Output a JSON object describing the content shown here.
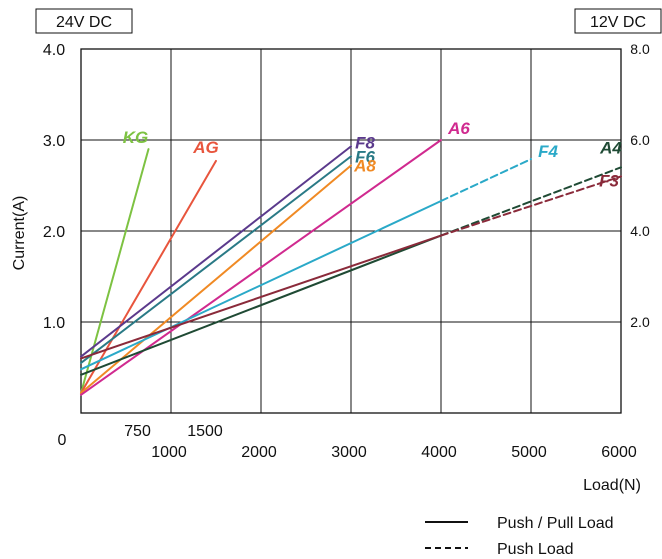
{
  "chart_data": {
    "type": "line",
    "left_axis_box": "24V DC",
    "right_axis_box": "12V DC",
    "ylabel": "Current(A)",
    "xlabel": "Load(N)",
    "xlim": [
      0,
      6000
    ],
    "ylim": [
      0,
      4.0
    ],
    "y2lim": [
      0,
      8.0
    ],
    "x_ticks": [
      "1000",
      "2000",
      "3000",
      "4000",
      "5000",
      "6000"
    ],
    "x_ticks_minor": [
      "750",
      "1500"
    ],
    "origin_label": "0",
    "y_ticks": [
      "1.0",
      "2.0",
      "3.0",
      "4.0"
    ],
    "y2_ticks": [
      "2.0",
      "4.0",
      "6.0",
      "8.0"
    ],
    "grid": true,
    "series": [
      {
        "name": "KG",
        "color": "#7dc242",
        "style": "solid",
        "points": [
          [
            0,
            0.22
          ],
          [
            750,
            2.9
          ]
        ]
      },
      {
        "name": "AG",
        "color": "#e8553d",
        "style": "solid",
        "points": [
          [
            0,
            0.22
          ],
          [
            1500,
            2.77
          ]
        ]
      },
      {
        "name": "F8",
        "color": "#5b3a8c",
        "style": "solid",
        "points": [
          [
            0,
            0.62
          ],
          [
            3000,
            2.93
          ]
        ]
      },
      {
        "name": "F6",
        "color": "#2a7a86",
        "style": "solid",
        "points": [
          [
            0,
            0.55
          ],
          [
            3000,
            2.82
          ]
        ]
      },
      {
        "name": "A8",
        "color": "#f08a24",
        "style": "solid",
        "points": [
          [
            0,
            0.22
          ],
          [
            3000,
            2.72
          ]
        ]
      },
      {
        "name": "A6",
        "color": "#d02a8f",
        "style": "solid",
        "points": [
          [
            0,
            0.2
          ],
          [
            4000,
            3.0
          ]
        ]
      },
      {
        "name": "F4",
        "color": "#2aa9c8",
        "style": "mixed",
        "points": [
          [
            0,
            0.48
          ],
          [
            4000,
            2.33
          ],
          [
            5000,
            2.79
          ]
        ]
      },
      {
        "name": "A4",
        "color": "#1f4a34",
        "style": "mixed",
        "points": [
          [
            0,
            0.42
          ],
          [
            4000,
            1.95
          ],
          [
            6000,
            2.7
          ]
        ]
      },
      {
        "name": "F3",
        "color": "#8a2a3a",
        "style": "mixed",
        "points": [
          [
            0,
            0.6
          ],
          [
            4000,
            1.95
          ],
          [
            6000,
            2.6
          ]
        ]
      }
    ],
    "legend": [
      {
        "label": "Push / Pull Load",
        "style": "solid"
      },
      {
        "label": "Push Load",
        "style": "dashed"
      }
    ]
  }
}
